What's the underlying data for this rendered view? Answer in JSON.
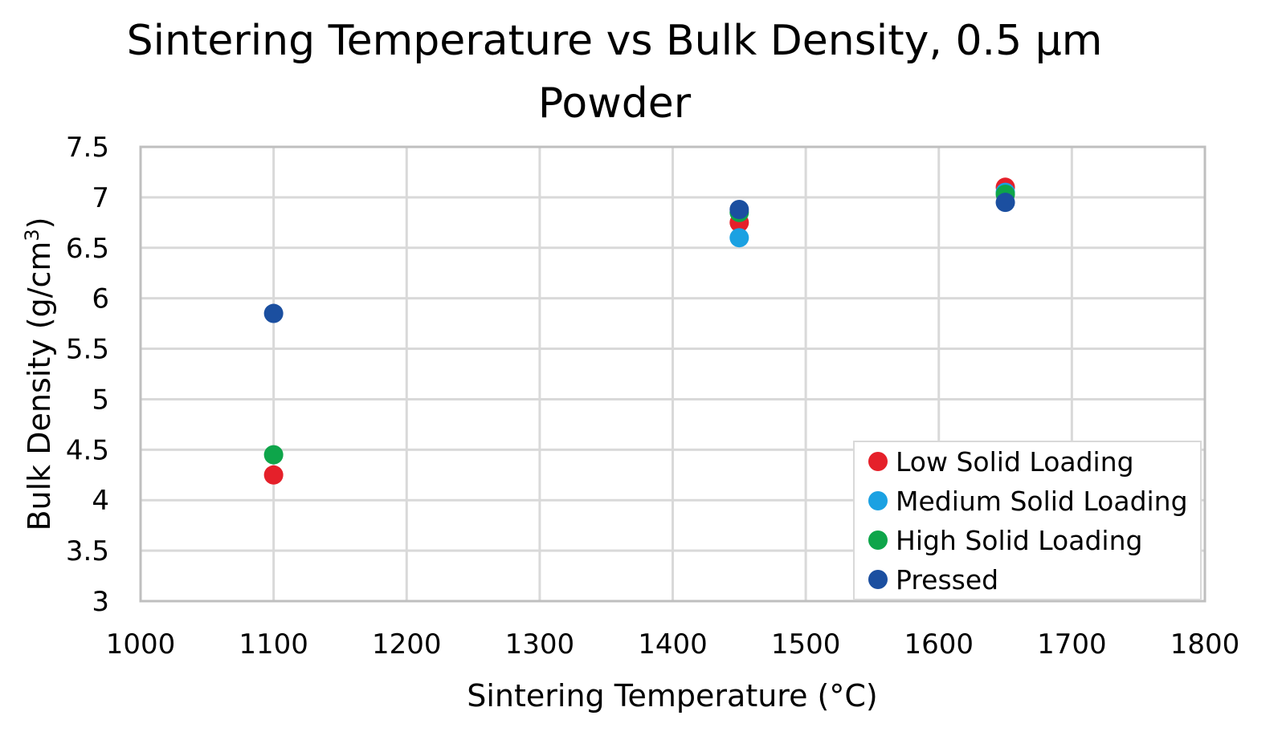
{
  "chart_data": {
    "type": "scatter",
    "title_lines": [
      "Sintering Temperature vs Bulk Density, 0.5 µm",
      "Powder"
    ],
    "xlabel": "Sintering Temperature (°C)",
    "ylabel": "Bulk Density (g/cm³)",
    "ylabel_parts": {
      "base": "Bulk Density (g/cm",
      "sup": "3",
      "tail": ")"
    },
    "xlim": [
      1000,
      1800
    ],
    "ylim": [
      3,
      7.5
    ],
    "x_ticks": [
      "1000",
      "1100",
      "1200",
      "1300",
      "1400",
      "1500",
      "1600",
      "1700",
      "1800"
    ],
    "y_ticks": [
      "3",
      "3.5",
      "4",
      "4.5",
      "5",
      "5.5",
      "6",
      "6.5",
      "7",
      "7.5"
    ],
    "grid": true,
    "legend_position": "bottom-right",
    "series": [
      {
        "name": "Low Solid Loading",
        "color": "#e5202a",
        "points": [
          {
            "x": 1100,
            "y": 4.25
          },
          {
            "x": 1450,
            "y": 6.75
          },
          {
            "x": 1650,
            "y": 7.1
          }
        ]
      },
      {
        "name": "Medium Solid Loading",
        "color": "#1ba1e2",
        "points": [
          {
            "x": 1450,
            "y": 6.6
          },
          {
            "x": 1650,
            "y": 7.05
          }
        ]
      },
      {
        "name": "High Solid Loading",
        "color": "#0ea54a",
        "points": [
          {
            "x": 1100,
            "y": 4.45
          },
          {
            "x": 1450,
            "y": 6.85
          },
          {
            "x": 1650,
            "y": 7.03
          }
        ]
      },
      {
        "name": "Pressed",
        "color": "#1b4fa0",
        "points": [
          {
            "x": 1100,
            "y": 5.85
          },
          {
            "x": 1450,
            "y": 6.88
          },
          {
            "x": 1650,
            "y": 6.95
          }
        ]
      }
    ]
  }
}
